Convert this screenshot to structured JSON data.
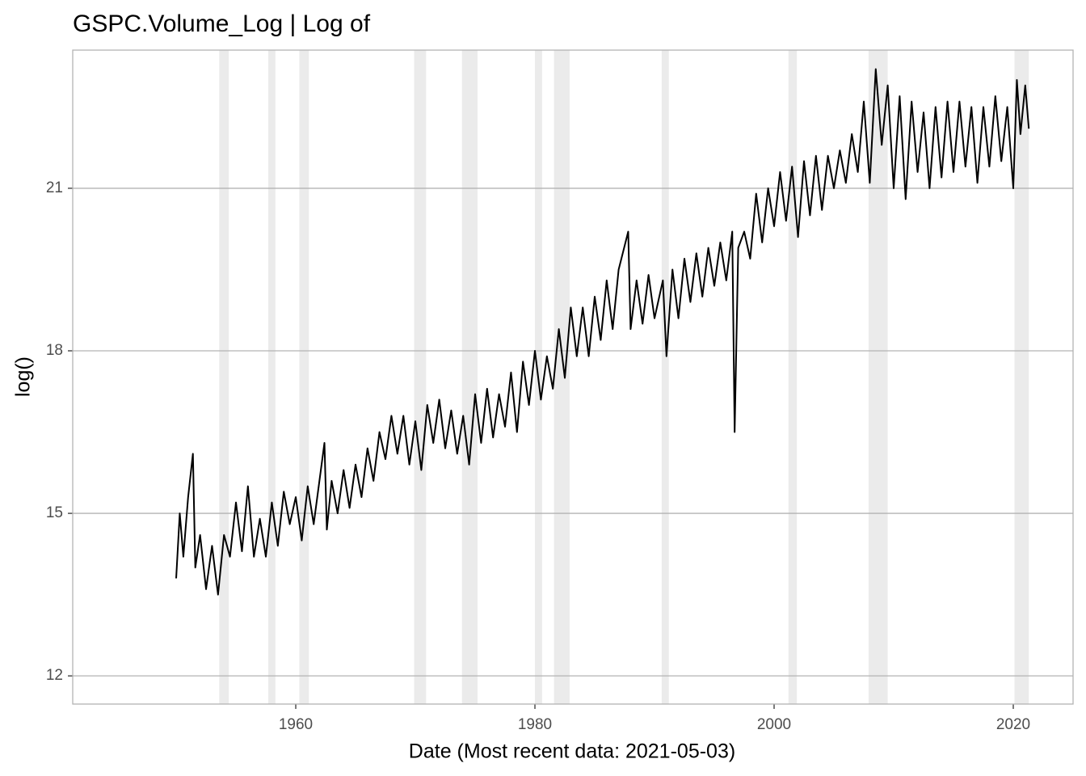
{
  "chart_data": {
    "type": "line",
    "title": "GSPC.Volume_Log | Log of",
    "x_label": "Date (Most recent data: 2021-05-03)",
    "y_label": "log()",
    "xlim": [
      1941.35,
      2025.0
    ],
    "ylim": [
      11.48,
      23.55
    ],
    "xticks": [
      1960,
      1980,
      2000,
      2020
    ],
    "yticks": [
      12,
      15,
      18,
      21
    ],
    "grid": true,
    "recession_color": "#ebebeb",
    "recessions": [
      [
        1953.6,
        1954.4
      ],
      [
        1957.7,
        1958.3
      ],
      [
        1960.3,
        1961.1
      ],
      [
        1969.9,
        1970.9
      ],
      [
        1973.9,
        1975.2
      ],
      [
        1980.0,
        1980.6
      ],
      [
        1981.6,
        1982.9
      ],
      [
        1990.6,
        1991.2
      ],
      [
        2001.2,
        2001.9
      ],
      [
        2007.9,
        2009.5
      ],
      [
        2020.1,
        2021.3
      ]
    ],
    "x": [
      1950.0,
      1950.3,
      1950.6,
      1951.0,
      1951.4,
      1951.6,
      1952.0,
      1952.5,
      1953.0,
      1953.5,
      1954.0,
      1954.5,
      1955.0,
      1955.5,
      1956.0,
      1956.5,
      1957.0,
      1957.5,
      1958.0,
      1958.5,
      1959.0,
      1959.5,
      1960.0,
      1960.5,
      1961.0,
      1961.5,
      1962.4,
      1962.6,
      1963.0,
      1963.5,
      1964.0,
      1964.5,
      1965.0,
      1965.5,
      1966.0,
      1966.5,
      1967.0,
      1967.5,
      1968.0,
      1968.5,
      1969.0,
      1969.5,
      1970.0,
      1970.5,
      1971.0,
      1971.5,
      1972.0,
      1972.5,
      1973.0,
      1973.5,
      1974.0,
      1974.5,
      1975.0,
      1975.5,
      1976.0,
      1976.5,
      1977.0,
      1977.5,
      1978.0,
      1978.5,
      1979.0,
      1979.5,
      1980.0,
      1980.5,
      1981.0,
      1981.5,
      1982.0,
      1982.5,
      1983.0,
      1983.5,
      1984.0,
      1984.5,
      1985.0,
      1985.5,
      1986.0,
      1986.5,
      1987.0,
      1987.8,
      1988.0,
      1988.5,
      1989.0,
      1989.5,
      1990.0,
      1990.7,
      1991.0,
      1991.5,
      1992.0,
      1992.5,
      1993.0,
      1993.5,
      1994.0,
      1994.5,
      1995.0,
      1995.5,
      1996.0,
      1996.5,
      1996.7,
      1997.0,
      1997.5,
      1998.0,
      1998.5,
      1999.0,
      1999.5,
      2000.0,
      2000.5,
      2001.0,
      2001.5,
      2002.0,
      2002.5,
      2003.0,
      2003.5,
      2004.0,
      2004.5,
      2005.0,
      2005.5,
      2006.0,
      2006.5,
      2007.0,
      2007.5,
      2008.0,
      2008.5,
      2009.0,
      2009.5,
      2010.0,
      2010.5,
      2011.0,
      2011.5,
      2012.0,
      2012.5,
      2013.0,
      2013.5,
      2014.0,
      2014.5,
      2015.0,
      2015.5,
      2016.0,
      2016.5,
      2017.0,
      2017.5,
      2018.0,
      2018.5,
      2019.0,
      2019.5,
      2020.0,
      2020.3,
      2020.6,
      2021.0,
      2021.3
    ],
    "series": [
      {
        "name": "GSPC.Volume_Log",
        "color": "#000000",
        "values": [
          13.8,
          15.0,
          14.2,
          15.3,
          16.1,
          14.0,
          14.6,
          13.6,
          14.4,
          13.5,
          14.6,
          14.2,
          15.2,
          14.3,
          15.5,
          14.2,
          14.9,
          14.2,
          15.2,
          14.4,
          15.4,
          14.8,
          15.3,
          14.5,
          15.5,
          14.8,
          16.3,
          14.7,
          15.6,
          15.0,
          15.8,
          15.1,
          15.9,
          15.3,
          16.2,
          15.6,
          16.5,
          16.0,
          16.8,
          16.1,
          16.8,
          15.9,
          16.7,
          15.8,
          17.0,
          16.3,
          17.1,
          16.2,
          16.9,
          16.1,
          16.8,
          15.9,
          17.2,
          16.3,
          17.3,
          16.4,
          17.2,
          16.6,
          17.6,
          16.5,
          17.8,
          17.0,
          18.0,
          17.1,
          17.9,
          17.3,
          18.4,
          17.5,
          18.8,
          17.9,
          18.8,
          17.9,
          19.0,
          18.2,
          19.3,
          18.4,
          19.5,
          20.2,
          18.4,
          19.3,
          18.5,
          19.4,
          18.6,
          19.3,
          17.9,
          19.5,
          18.6,
          19.7,
          18.9,
          19.8,
          19.0,
          19.9,
          19.2,
          20.0,
          19.3,
          20.2,
          16.5,
          19.9,
          20.2,
          19.7,
          20.9,
          20.0,
          21.0,
          20.3,
          21.3,
          20.4,
          21.4,
          20.1,
          21.5,
          20.5,
          21.6,
          20.6,
          21.6,
          21.0,
          21.7,
          21.1,
          22.0,
          21.3,
          22.6,
          21.1,
          23.2,
          21.8,
          22.9,
          21.0,
          22.7,
          20.8,
          22.6,
          21.3,
          22.4,
          21.0,
          22.5,
          21.2,
          22.6,
          21.3,
          22.6,
          21.4,
          22.5,
          21.1,
          22.5,
          21.4,
          22.7,
          21.5,
          22.5,
          21.0,
          23.0,
          22.0,
          22.9,
          22.1
        ]
      }
    ]
  }
}
